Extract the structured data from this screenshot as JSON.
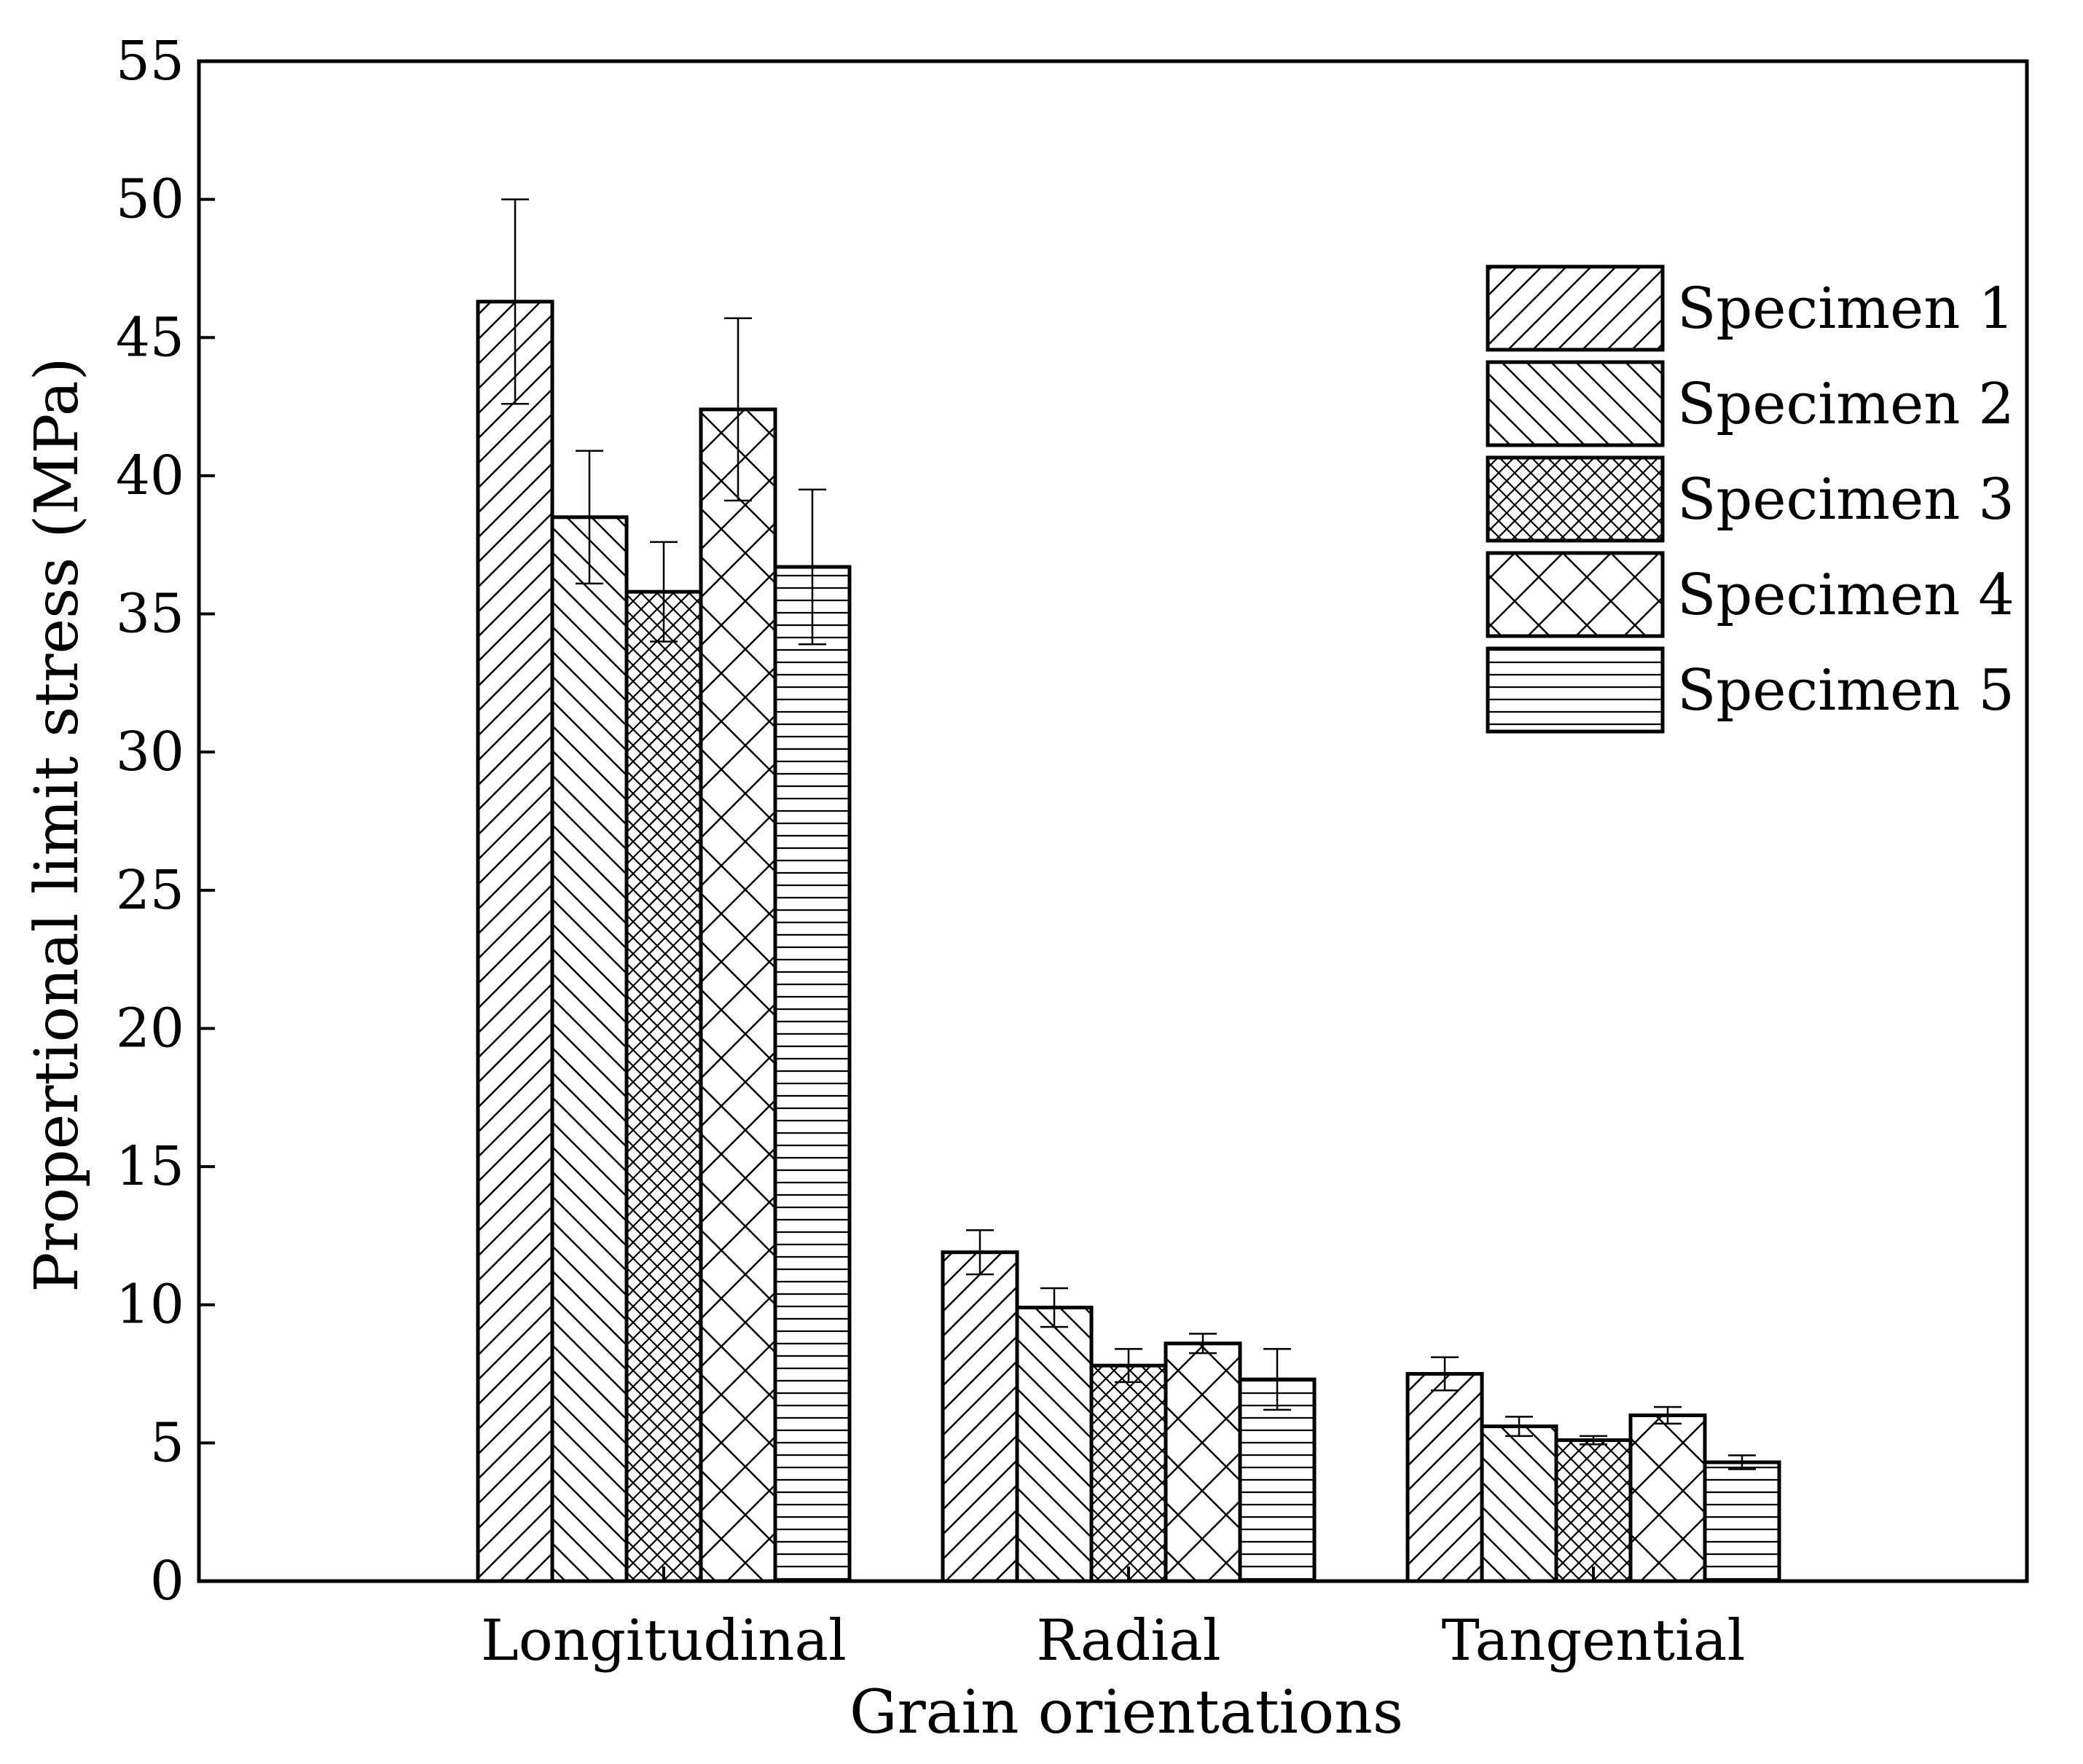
{
  "chart_data": {
    "type": "bar",
    "title": "",
    "xlabel": "Grain orientations",
    "ylabel": "Propertional limit stress (MPa)",
    "ylim": [
      0,
      55
    ],
    "yticks": [
      0,
      5,
      10,
      15,
      20,
      25,
      30,
      35,
      40,
      45,
      50,
      55
    ],
    "grid": false,
    "legend_position": "top-right",
    "categories": [
      "Longitudinal",
      "Radial",
      "Tangential"
    ],
    "series": [
      {
        "name": "Specimen 1",
        "pattern": "diagonal-up",
        "values": [
          46.3,
          11.9,
          7.5
        ],
        "errors": [
          3.7,
          0.8,
          0.6
        ]
      },
      {
        "name": "Specimen 2",
        "pattern": "diagonal-down",
        "values": [
          38.5,
          9.9,
          5.6
        ],
        "errors": [
          2.4,
          0.7,
          0.35
        ]
      },
      {
        "name": "Specimen 3",
        "pattern": "fine-crosshatch",
        "values": [
          35.8,
          7.8,
          5.1
        ],
        "errors": [
          1.8,
          0.6,
          0.15
        ]
      },
      {
        "name": "Specimen 4",
        "pattern": "coarse-crosshatch",
        "values": [
          42.4,
          8.6,
          6.0
        ],
        "errors": [
          3.3,
          0.35,
          0.3
        ]
      },
      {
        "name": "Specimen 5",
        "pattern": "horizontal",
        "values": [
          36.7,
          7.3,
          4.3
        ],
        "errors": [
          2.8,
          1.1,
          0.25
        ]
      }
    ]
  },
  "colors": {
    "ink": "#000000",
    "background": "#ffffff"
  }
}
